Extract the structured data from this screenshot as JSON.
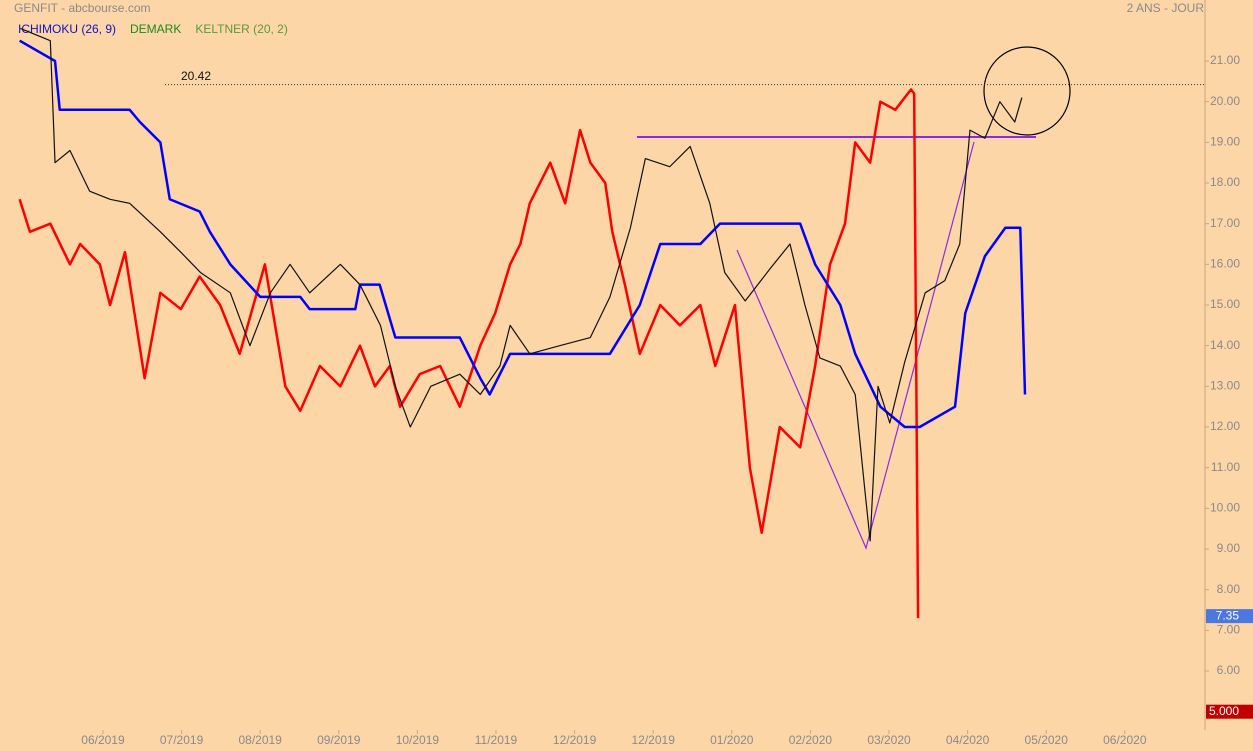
{
  "chart_data": {
    "type": "line",
    "title": "GENFIT - abcbourse.com",
    "subtitle": "2 ANS - JOUR",
    "indicators": [
      {
        "label": "ICHIMOKU (26, 9)",
        "color": "#1010c8"
      },
      {
        "label": "DEMARK",
        "color": "#1a8a1a"
      },
      {
        "label": "KELTNER (20, 2)",
        "color": "#5a9a3a"
      }
    ],
    "xlim": [
      -1.31,
      14.02
    ],
    "xticks": [
      {
        "value": 0,
        "label": "06/2019"
      },
      {
        "value": 1,
        "label": "07/2019"
      },
      {
        "value": 2,
        "label": "08/2019"
      },
      {
        "value": 3,
        "label": "09/2019"
      },
      {
        "value": 4,
        "label": "10/2019"
      },
      {
        "value": 5,
        "label": "11/2019"
      },
      {
        "value": 6,
        "label": "12/2019"
      },
      {
        "value": 7,
        "label": "12/2019"
      },
      {
        "value": 8,
        "label": "01/2020"
      },
      {
        "value": 9,
        "label": "02/2020"
      },
      {
        "value": 10,
        "label": "03/2020"
      },
      {
        "value": 11,
        "label": "04/2020"
      },
      {
        "value": 12,
        "label": "05/2020"
      },
      {
        "value": 13,
        "label": "06/2020"
      }
    ],
    "ylim": [
      4.55,
      22.5
    ],
    "yticks": [
      {
        "value": 6,
        "label": "6.00"
      },
      {
        "value": 7,
        "label": "7.00"
      },
      {
        "value": 8,
        "label": "8.00"
      },
      {
        "value": 9,
        "label": "9.00"
      },
      {
        "value": 10,
        "label": "10.00"
      },
      {
        "value": 11,
        "label": "11.00"
      },
      {
        "value": 12,
        "label": "12.00"
      },
      {
        "value": 13,
        "label": "13.00"
      },
      {
        "value": 14,
        "label": "14.00"
      },
      {
        "value": 15,
        "label": "15.00"
      },
      {
        "value": 16,
        "label": "16.00"
      },
      {
        "value": 17,
        "label": "17.00"
      },
      {
        "value": 18,
        "label": "18.00"
      },
      {
        "value": 19,
        "label": "19.00"
      },
      {
        "value": 20,
        "label": "20.00"
      },
      {
        "value": 21,
        "label": "21.00"
      }
    ],
    "ref_line": 20.42,
    "price_tags": [
      {
        "value": 7.35,
        "color": "#4a78e0"
      },
      {
        "value": 5,
        "label": "5.000",
        "color": "#c00000"
      }
    ],
    "series": [
      {
        "color": "#ff0000",
        "width": 2.5,
        "x": [
          -1.06,
          -0.93,
          -0.67,
          -0.42,
          -0.29,
          -0.04,
          0.09,
          0.28,
          0.53,
          0.73,
          0.99,
          1.23,
          1.49,
          1.74,
          2.06,
          2.32,
          2.51,
          2.76,
          3.02,
          3.27,
          3.46,
          3.65,
          3.78,
          4.03,
          4.29,
          4.54,
          4.8,
          4.99,
          5.18,
          5.31,
          5.43,
          5.69,
          5.88,
          6.07,
          6.2,
          6.39,
          6.48,
          6.64,
          6.83,
          7.09,
          7.34,
          7.6,
          7.79,
          8.04,
          8.23,
          8.38,
          8.61,
          8.87,
          9.06,
          9.25,
          9.44,
          9.57,
          9.76,
          9.89,
          10.08,
          10.28,
          10.32,
          10.37
        ],
        "values": [
          17.6,
          16.8,
          17.0,
          16.0,
          16.5,
          16.0,
          15.0,
          16.3,
          13.2,
          15.3,
          14.9,
          15.7,
          15.0,
          13.8,
          16.0,
          13.0,
          12.4,
          13.5,
          13.0,
          14.0,
          13.0,
          13.5,
          12.5,
          13.3,
          13.5,
          12.5,
          14.0,
          14.8,
          16.0,
          16.5,
          17.5,
          18.5,
          17.5,
          19.3,
          18.5,
          18.0,
          16.8,
          15.5,
          13.8,
          15.0,
          14.5,
          15.0,
          13.5,
          15.0,
          11.0,
          9.4,
          12.0,
          11.5,
          13.5,
          16.0,
          17.0,
          19.0,
          18.5,
          20.0,
          19.8,
          20.3,
          20.2,
          7.3
        ]
      },
      {
        "color": "#0000ff",
        "width": 2.5,
        "x": [
          -1.06,
          -0.61,
          -0.55,
          0.34,
          0.47,
          0.73,
          0.85,
          1.23,
          1.36,
          1.62,
          2.0,
          2.51,
          2.63,
          3.21,
          3.27,
          3.52,
          3.72,
          4.54,
          4.8,
          4.92,
          5.18,
          6.45,
          6.83,
          7.09,
          7.6,
          7.85,
          8.87,
          9.06,
          9.38,
          9.57,
          9.89,
          10.2,
          10.39,
          10.84,
          10.97,
          11.22,
          11.48,
          11.67,
          11.73
        ],
        "values": [
          21.5,
          21.0,
          19.8,
          19.8,
          19.5,
          19.0,
          17.6,
          17.3,
          16.8,
          16.0,
          15.2,
          15.2,
          14.9,
          14.9,
          15.5,
          15.5,
          14.2,
          14.2,
          13.2,
          12.8,
          13.8,
          13.8,
          15.0,
          16.5,
          16.5,
          17.0,
          17.0,
          16.0,
          15.0,
          13.8,
          12.5,
          12.0,
          12.0,
          12.5,
          14.8,
          16.2,
          16.9,
          16.9,
          12.8
        ]
      },
      {
        "color": "#111111",
        "width": 1.2,
        "x": [
          -1.05,
          -0.67,
          -0.61,
          -0.42,
          -0.17,
          0.09,
          0.34,
          0.73,
          0.99,
          1.24,
          1.62,
          1.87,
          2.13,
          2.38,
          2.63,
          3.02,
          3.27,
          3.53,
          3.72,
          3.91,
          4.17,
          4.54,
          4.8,
          5.05,
          5.18,
          5.43,
          5.81,
          6.2,
          6.45,
          6.71,
          6.9,
          7.21,
          7.47,
          7.72,
          7.91,
          8.17,
          8.49,
          8.74,
          8.93,
          9.12,
          9.38,
          9.57,
          9.69,
          9.76,
          9.86,
          10.01,
          10.2,
          10.46,
          10.71,
          10.9,
          11.03,
          11.22,
          11.41,
          11.6,
          11.69
        ],
        "values": [
          21.8,
          21.5,
          18.5,
          18.8,
          17.8,
          17.6,
          17.5,
          16.8,
          16.3,
          15.8,
          15.3,
          14.0,
          15.3,
          16.0,
          15.3,
          16.0,
          15.5,
          14.5,
          13.0,
          12.0,
          13.0,
          13.3,
          12.8,
          13.5,
          14.5,
          13.8,
          14.0,
          14.2,
          15.2,
          16.9,
          18.6,
          18.4,
          18.9,
          17.5,
          15.8,
          15.1,
          15.9,
          16.5,
          15.0,
          13.7,
          13.5,
          12.8,
          10.5,
          9.2,
          13.0,
          12.1,
          13.6,
          15.3,
          15.6,
          16.5,
          19.3,
          19.1,
          20.0,
          19.5,
          20.1
        ]
      }
    ]
  }
}
